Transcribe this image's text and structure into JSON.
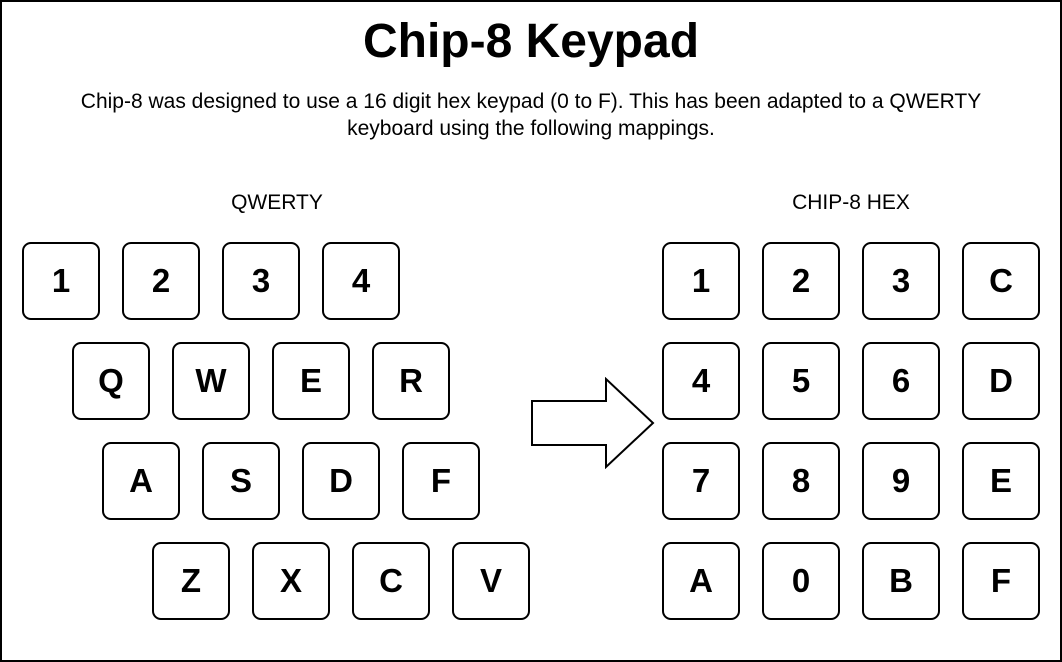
{
  "title": "Chip-8 Keypad",
  "description": "Chip-8 was designed to use a 16 digit hex keypad (0 to F). This has been adapted to a QWERTY keyboard using the following mappings.",
  "qwerty": {
    "label": "QWERTY",
    "rows": [
      [
        "1",
        "2",
        "3",
        "4"
      ],
      [
        "Q",
        "W",
        "E",
        "R"
      ],
      [
        "A",
        "S",
        "D",
        "F"
      ],
      [
        "Z",
        "X",
        "C",
        "V"
      ]
    ]
  },
  "hex": {
    "label": "CHIP-8 HEX",
    "rows": [
      [
        "1",
        "2",
        "3",
        "C"
      ],
      [
        "4",
        "5",
        "6",
        "D"
      ],
      [
        "7",
        "8",
        "9",
        "E"
      ],
      [
        "A",
        "0",
        "B",
        "F"
      ]
    ]
  },
  "arrow_icon": "right-arrow-icon"
}
